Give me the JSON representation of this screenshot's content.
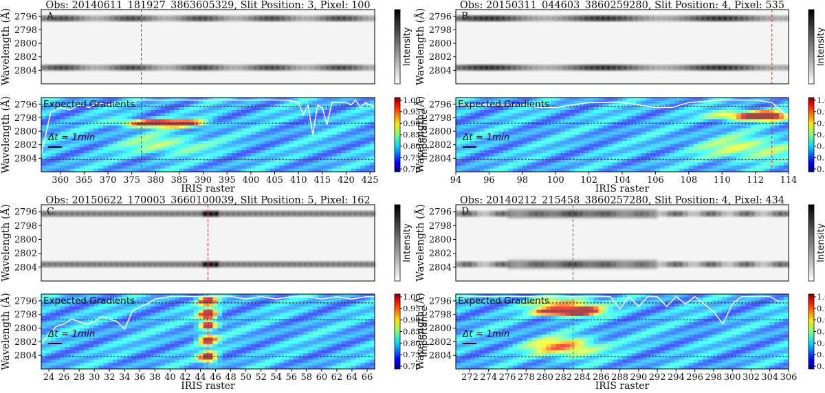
{
  "figure": {
    "shared": {
      "ylabel": "Wavelength (Å)",
      "xlabel": "IRIS raster",
      "intensity_label": "Intensity",
      "importance_label": "Importance",
      "annotation": "Expected Gradients",
      "dt_label": "Δt = 1min",
      "wavelength_ticks": [
        "2796",
        "2798",
        "2800",
        "2802",
        "2804"
      ],
      "importance_ticks": [
        "1.00",
        "0.95",
        "0.90",
        "0.85",
        "0.80",
        "0.75",
        "0.70"
      ]
    },
    "panels": [
      {
        "letter": "A",
        "title": "Obs: 20140611_181927_3863605329,  Slit Position: 3,  Pixel: 100"
      },
      {
        "letter": "B",
        "title": "Obs: 20150311_044603_3860259280,  Slit Position: 4,  Pixel: 535"
      },
      {
        "letter": "C",
        "title": "Obs: 20150622_170003_3660100039,  Slit Position: 5,  Pixel: 162"
      },
      {
        "letter": "D",
        "title": "Obs: 20140212_215458_3860257280,  Slit Position: 4,  Pixel: 434"
      }
    ]
  },
  "colors": {
    "marker_line": "#d62728",
    "gradient_line": "#ffffff",
    "guide_line": "#222222"
  },
  "chart_data": [
    {
      "type": "heatmap",
      "panel": "A",
      "title": "Obs: 20140611_181927_3863605329,  Slit Position: 3,  Pixel: 100",
      "xlabel": "IRIS raster",
      "ylabel": "Wavelength (Å)",
      "xlim": [
        356,
        426
      ],
      "xticks": [
        360,
        365,
        370,
        375,
        380,
        385,
        390,
        395,
        400,
        405,
        410,
        415,
        420,
        425
      ],
      "ylim": [
        2795,
        2806
      ],
      "yticks": [
        2796,
        2798,
        2800,
        2802,
        2804
      ],
      "marker_x": 377,
      "expected_gradient_guides_angstrom": [
        2796.3,
        2798.8,
        2804.2
      ],
      "importance_range": [
        0.7,
        1.0
      ],
      "importance_hotspots": [
        {
          "x": 380,
          "y": 2798.8,
          "sx": 4.5,
          "sy": 0.35,
          "v": 1.0
        },
        {
          "x": 387,
          "y": 2798.8,
          "sx": 3.0,
          "sy": 0.35,
          "v": 0.45
        },
        {
          "x": 382,
          "y": 2802.0,
          "sx": 6.0,
          "sy": 1.0,
          "v": 0.25
        }
      ],
      "expected_gradient_curve_x": [
        356,
        358,
        360,
        362,
        364,
        366,
        368,
        370,
        372,
        374,
        376,
        378,
        380,
        382,
        384,
        386,
        388,
        390,
        392,
        394,
        396,
        398,
        400,
        402,
        404,
        406,
        408,
        410,
        411,
        412,
        413,
        414,
        415,
        416,
        417,
        418,
        420,
        421,
        422,
        423,
        424,
        426
      ],
      "expected_gradient_curve_y": [
        0.77,
        0.94,
        0.96,
        0.95,
        0.97,
        0.96,
        0.98,
        0.97,
        0.98,
        0.98,
        0.99,
        0.99,
        0.99,
        0.99,
        0.99,
        0.99,
        0.99,
        0.99,
        0.99,
        0.99,
        0.99,
        0.99,
        0.99,
        0.99,
        0.99,
        0.99,
        0.99,
        0.98,
        0.93,
        0.97,
        0.85,
        0.97,
        0.96,
        0.89,
        0.98,
        0.98,
        0.98,
        0.97,
        0.99,
        0.96,
        0.98,
        0.96
      ]
    },
    {
      "type": "heatmap",
      "panel": "B",
      "title": "Obs: 20150311_044603_3860259280,  Slit Position: 4,  Pixel: 535",
      "xlabel": "IRIS raster",
      "ylabel": "Wavelength (Å)",
      "xlim": [
        94,
        114
      ],
      "xticks": [
        94,
        96,
        98,
        100,
        102,
        104,
        106,
        108,
        110,
        112,
        114
      ],
      "ylim": [
        2795,
        2806
      ],
      "yticks": [
        2796,
        2798,
        2800,
        2802,
        2804
      ],
      "marker_x": 113,
      "expected_gradient_guides_angstrom": [
        2796.3,
        2798.8,
        2804.2
      ],
      "importance_range": [
        0.7,
        1.0
      ],
      "importance_hotspots": [
        {
          "x": 112.6,
          "y": 2797.7,
          "sx": 0.8,
          "sy": 0.45,
          "v": 1.0
        },
        {
          "x": 111.0,
          "y": 2797.7,
          "sx": 1.2,
          "sy": 0.45,
          "v": 0.5
        },
        {
          "x": 111.5,
          "y": 2802.5,
          "sx": 2.0,
          "sy": 1.2,
          "v": 0.3
        }
      ],
      "expected_gradient_curve_x": [
        94,
        96,
        98,
        99,
        100,
        102,
        104,
        106,
        107,
        108,
        110,
        112,
        113,
        114
      ],
      "expected_gradient_curve_y": [
        0.97,
        0.97,
        0.97,
        0.96,
        0.96,
        0.98,
        0.98,
        0.96,
        0.96,
        0.98,
        0.99,
        0.99,
        0.98,
        0.92
      ]
    },
    {
      "type": "heatmap",
      "panel": "C",
      "title": "Obs: 20150622_170003_3660100039,  Slit Position: 5,  Pixel: 162",
      "xlabel": "IRIS raster",
      "ylabel": "Wavelength (Å)",
      "xlim": [
        23,
        67
      ],
      "xticks": [
        24,
        26,
        28,
        30,
        32,
        34,
        36,
        38,
        40,
        42,
        44,
        46,
        48,
        50,
        52,
        54,
        56,
        58,
        60,
        62,
        64,
        66
      ],
      "ylim": [
        2795,
        2806
      ],
      "yticks": [
        2796,
        2798,
        2800,
        2802,
        2804
      ],
      "marker_x": 45,
      "expected_gradient_guides_angstrom": [
        2796.3,
        2798.8,
        2804.2
      ],
      "importance_range": [
        0.7,
        1.0
      ],
      "importance_hotspots": [
        {
          "x": 45,
          "y": 2796.1,
          "sx": 0.8,
          "sy": 0.4,
          "v": 1.0
        },
        {
          "x": 45,
          "y": 2798.0,
          "sx": 0.8,
          "sy": 0.5,
          "v": 1.0
        },
        {
          "x": 45,
          "y": 2799.6,
          "sx": 0.8,
          "sy": 0.4,
          "v": 0.85
        },
        {
          "x": 45,
          "y": 2801.7,
          "sx": 0.8,
          "sy": 0.5,
          "v": 0.8
        },
        {
          "x": 45,
          "y": 2804.3,
          "sx": 0.8,
          "sy": 0.5,
          "v": 0.9
        }
      ],
      "expected_gradient_curve_x": [
        23,
        24,
        25,
        26,
        27,
        28,
        29,
        30,
        31,
        32,
        33,
        34,
        35,
        36,
        37,
        38,
        40,
        42,
        44,
        45,
        46,
        48,
        50,
        52,
        54,
        56,
        58,
        60,
        62,
        64,
        66,
        67
      ],
      "expected_gradient_curve_y": [
        0.8,
        0.84,
        0.87,
        0.88,
        0.9,
        0.89,
        0.88,
        0.89,
        0.91,
        0.9,
        0.89,
        0.86,
        0.93,
        0.95,
        0.96,
        0.98,
        0.99,
        0.99,
        0.99,
        0.99,
        0.99,
        0.99,
        0.98,
        0.99,
        0.98,
        0.99,
        0.99,
        0.98,
        0.99,
        0.98,
        0.99,
        0.99
      ]
    },
    {
      "type": "heatmap",
      "panel": "D",
      "title": "Obs: 20140212_215458_3860257280,  Slit Position: 4,  Pixel: 434",
      "xlabel": "IRIS raster",
      "ylabel": "Wavelength (Å)",
      "xlim": [
        270.5,
        306
      ],
      "xticks": [
        272,
        274,
        276,
        278,
        280,
        282,
        284,
        286,
        288,
        290,
        292,
        294,
        296,
        298,
        300,
        302,
        304,
        306
      ],
      "ylim": [
        2795,
        2806
      ],
      "yticks": [
        2796,
        2798,
        2800,
        2802,
        2804
      ],
      "marker_x": 283,
      "expected_gradient_guides_angstrom": [
        2796.3,
        2798.8,
        2804.2
      ],
      "importance_range": [
        0.7,
        1.0
      ],
      "importance_hotspots": [
        {
          "x": 284,
          "y": 2797.5,
          "sx": 1.4,
          "sy": 0.45,
          "v": 1.0
        },
        {
          "x": 281,
          "y": 2797.6,
          "sx": 1.5,
          "sy": 0.4,
          "v": 0.9
        },
        {
          "x": 282,
          "y": 2802.8,
          "sx": 2.5,
          "sy": 0.9,
          "v": 0.55
        },
        {
          "x": 282,
          "y": 2796.3,
          "sx": 2.5,
          "sy": 0.5,
          "v": 0.45
        }
      ],
      "expected_gradient_curve_x": [
        270.5,
        272,
        274,
        276,
        278,
        280,
        282,
        284,
        286,
        287,
        288,
        289,
        290,
        291,
        292,
        293,
        294,
        295,
        296,
        297,
        298,
        299,
        300,
        301,
        302,
        304,
        305
      ],
      "expected_gradient_curve_y": [
        0.99,
        0.99,
        0.99,
        0.99,
        0.99,
        0.99,
        0.99,
        0.99,
        0.99,
        0.99,
        0.94,
        0.99,
        0.95,
        0.99,
        0.99,
        0.95,
        0.99,
        0.96,
        0.99,
        0.96,
        0.93,
        0.88,
        0.96,
        0.99,
        0.99,
        0.99,
        0.97
      ]
    }
  ]
}
